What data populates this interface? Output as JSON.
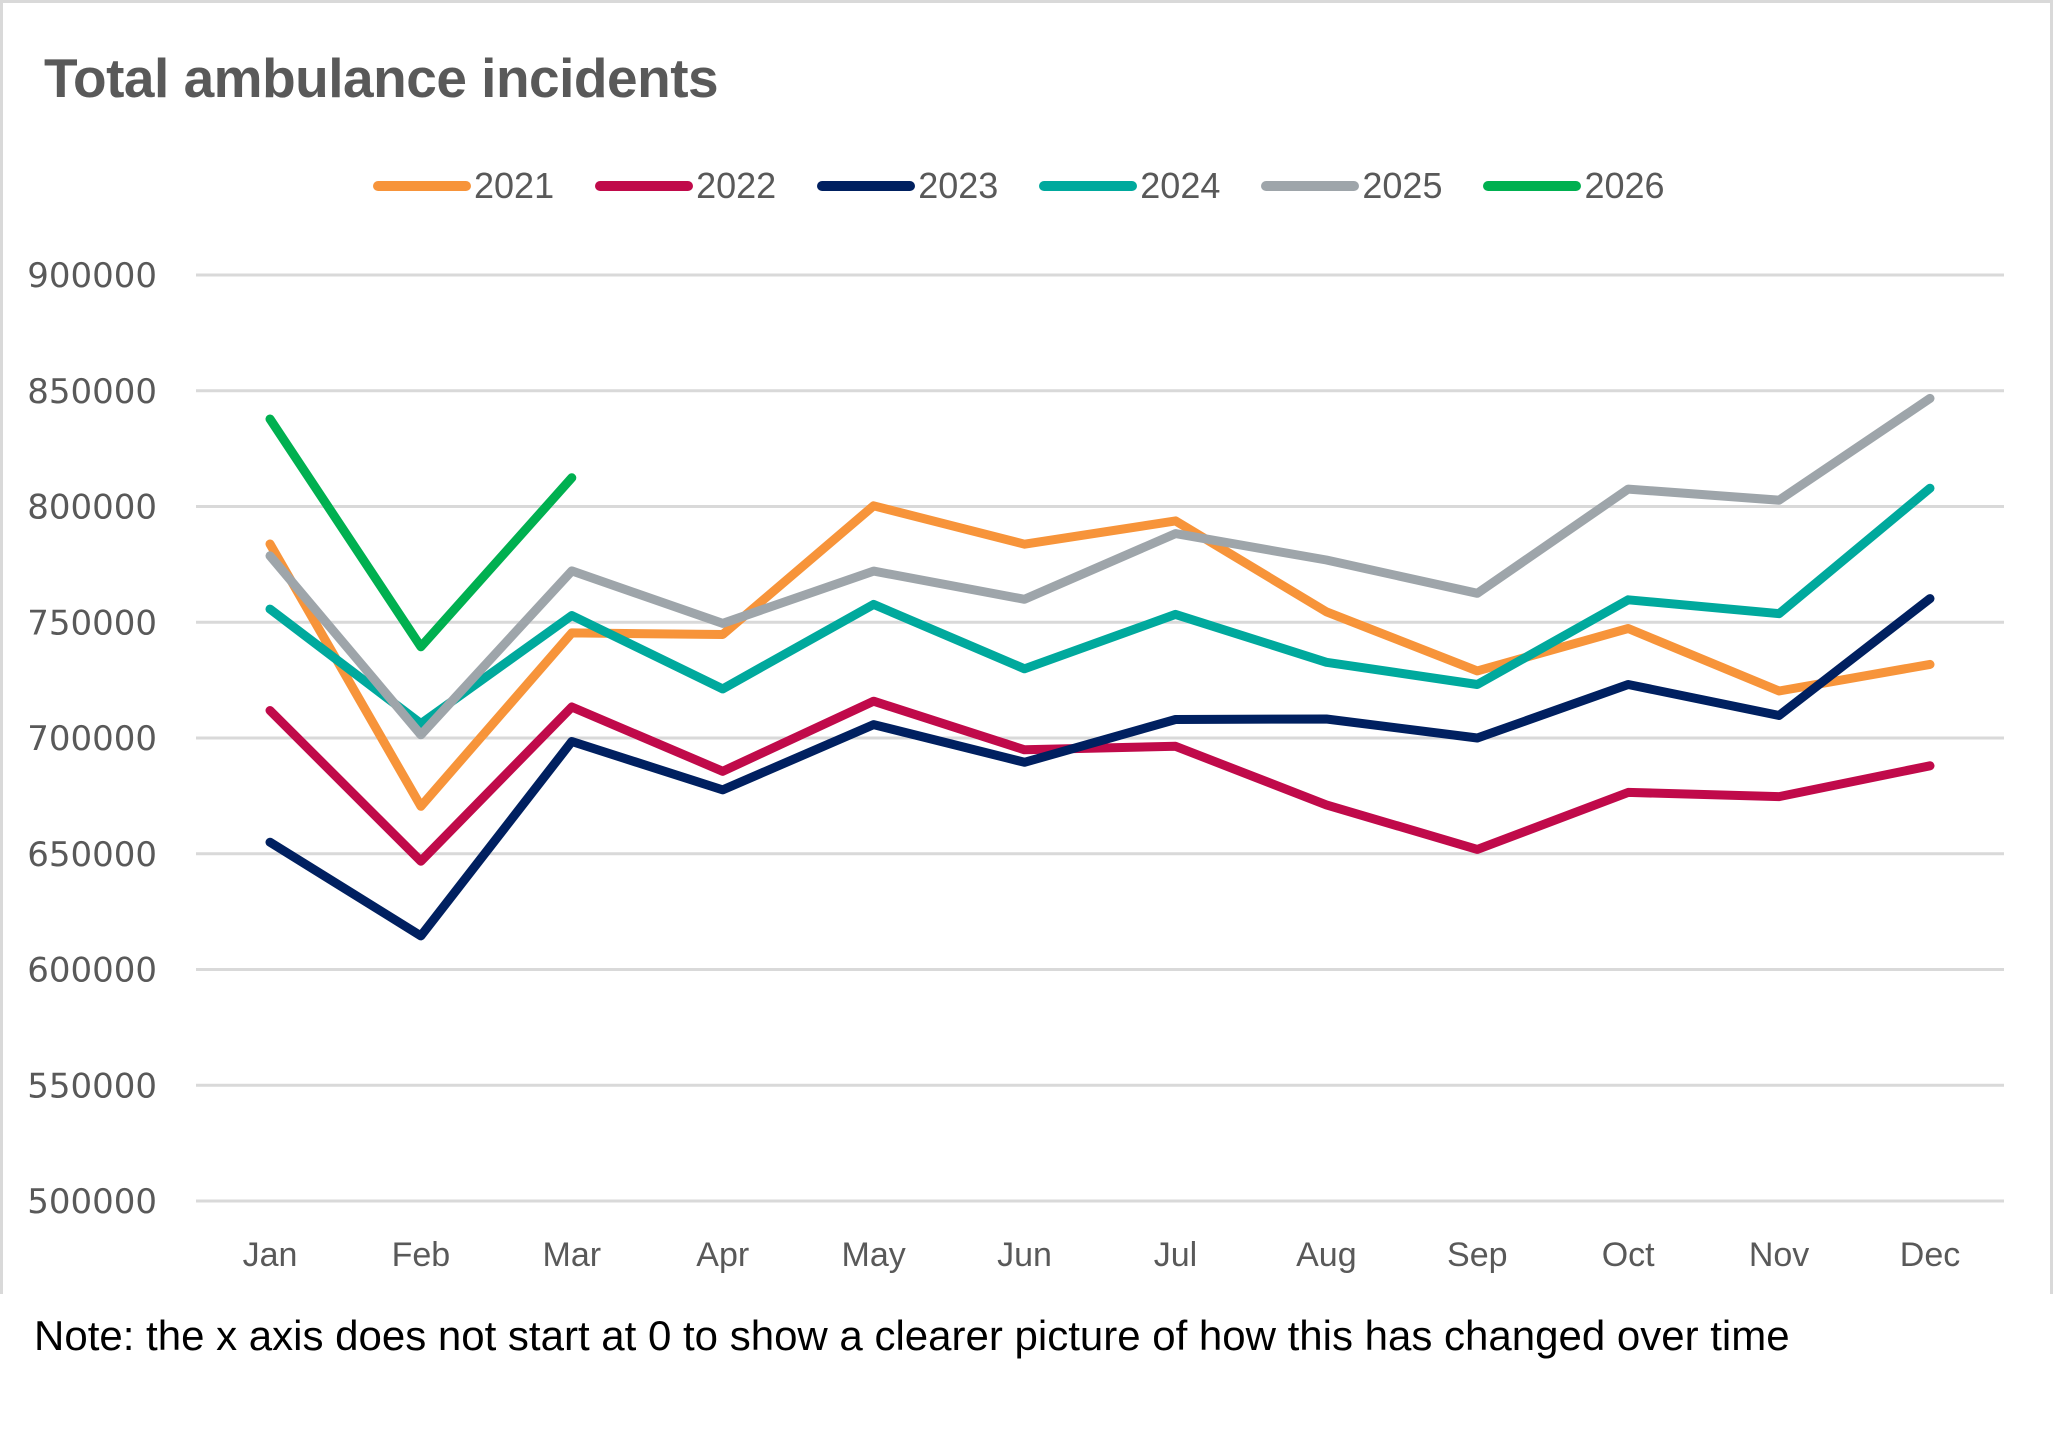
{
  "chart_data": {
    "type": "line",
    "title": "Total ambulance incidents",
    "xlabel": "",
    "ylabel": "",
    "categories": [
      "Jan",
      "Feb",
      "Mar",
      "Apr",
      "May",
      "Jun",
      "Jul",
      "Aug",
      "Sep",
      "Oct",
      "Nov",
      "Dec"
    ],
    "ylim": [
      500000,
      900000
    ],
    "yticks": [
      500000,
      550000,
      600000,
      650000,
      700000,
      750000,
      800000,
      850000,
      900000
    ],
    "ytick_labels": [
      "500000",
      "550000",
      "600000",
      "650000",
      "700000",
      "750000",
      "800000",
      "850000",
      "900000"
    ],
    "grid": true,
    "legend_position": "top",
    "series": [
      {
        "name": "2021",
        "color": "#F7943A",
        "values": [
          783800,
          670500,
          745400,
          744700,
          800300,
          783700,
          793800,
          754500,
          729000,
          747300,
          720300,
          731800
        ]
      },
      {
        "name": "2022",
        "color": "#C00A4A",
        "values": [
          711900,
          646800,
          713400,
          685600,
          715900,
          694900,
          696400,
          671100,
          651900,
          676500,
          674700,
          688000
        ]
      },
      {
        "name": "2023",
        "color": "#002060",
        "values": [
          655000,
          614500,
          698500,
          677600,
          705800,
          689500,
          708000,
          708200,
          700000,
          723100,
          709700,
          760200
        ]
      },
      {
        "name": "2024",
        "color": "#00A99D",
        "values": [
          755700,
          706200,
          752900,
          721200,
          757700,
          729900,
          753400,
          732700,
          723100,
          759700,
          753700,
          807900
        ]
      },
      {
        "name": "2025",
        "color": "#9EA5AA",
        "values": [
          778700,
          701400,
          772200,
          749500,
          772100,
          759900,
          788300,
          776900,
          762500,
          807500,
          802700,
          846700
        ]
      },
      {
        "name": "2026",
        "color": "#00B050",
        "values": [
          837800,
          739400,
          812400,
          null,
          null,
          null,
          null,
          null,
          null,
          null,
          null,
          null
        ]
      }
    ]
  },
  "note": "Note: the x axis does not start at 0 to show a clearer picture of how this has changed over time",
  "colors": {
    "text": "#595959",
    "gridline": "#D9D9D9",
    "frame": "#D9D9D9"
  }
}
